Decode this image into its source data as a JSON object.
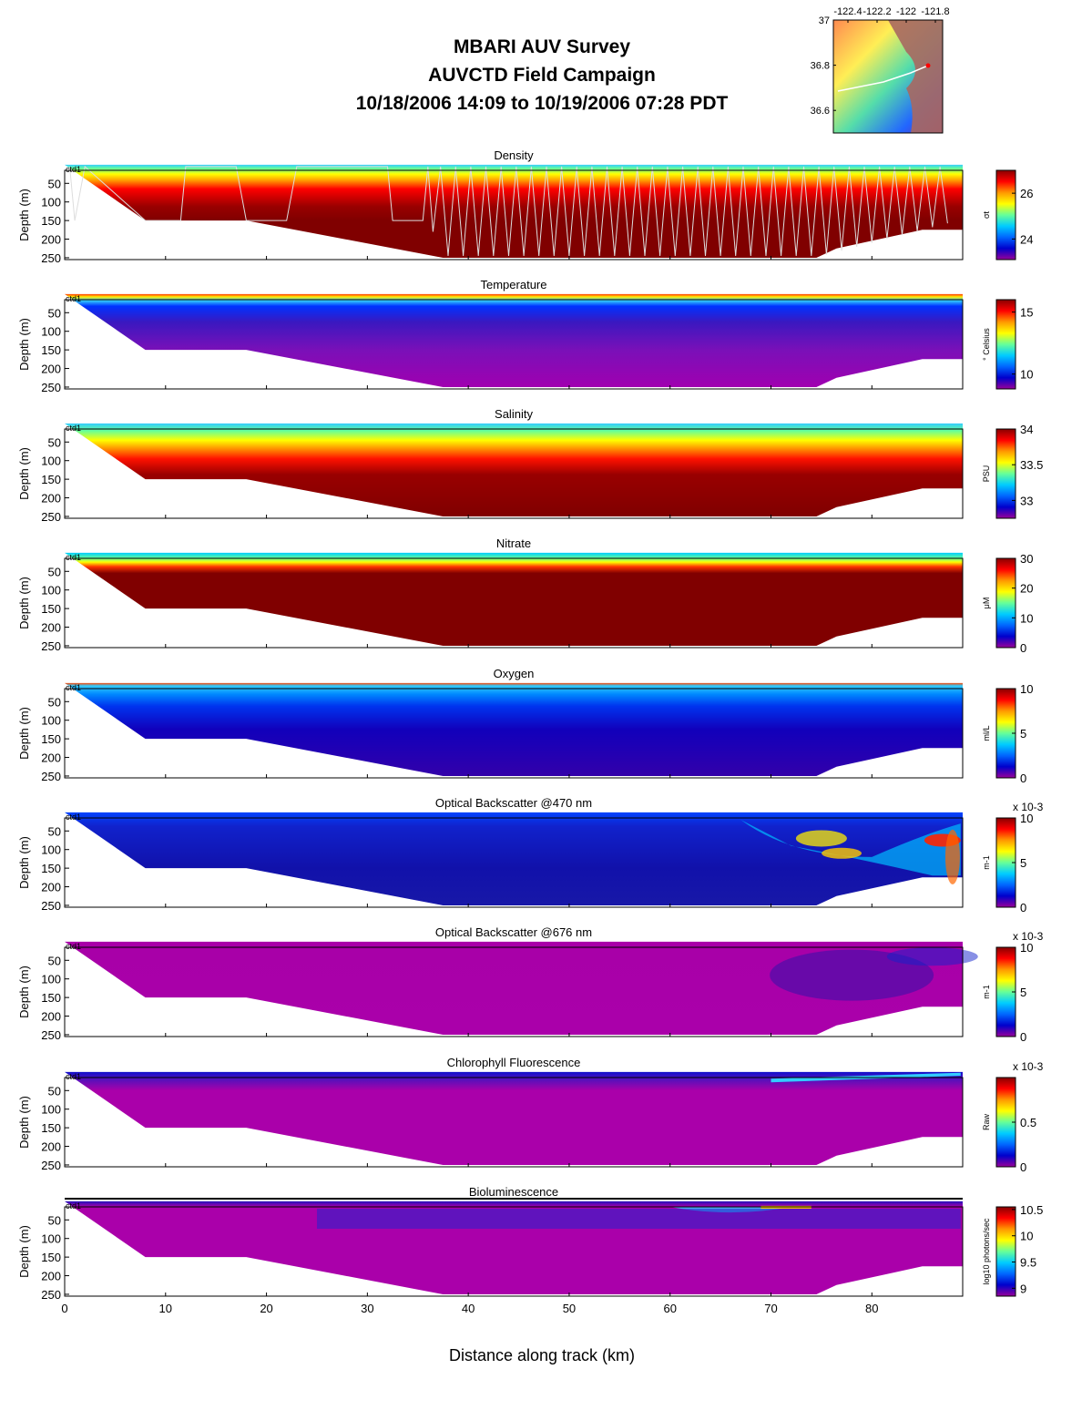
{
  "header": {
    "line1": "MBARI AUV Survey",
    "line2": "AUVCTD Field Campaign",
    "line3": "10/18/2006 14:09  to 10/19/2006 07:28 PDT"
  },
  "map_inset": {
    "lon_ticks": [
      "-122.4",
      "-122.2",
      "-122",
      "-121.8"
    ],
    "lat_ticks": [
      "37",
      "36.8",
      "36.6"
    ],
    "lon_range": [
      -122.5,
      -121.75
    ],
    "lat_range": [
      36.5,
      37.0
    ],
    "land_color": "#a86860",
    "track_color": "#ffffff",
    "end_marker_color": "#ff0000"
  },
  "chart_data": {
    "type": "heatmap",
    "xlabel": "Distance along track (km)",
    "ylabel": "Depth (m)",
    "xlim": [
      0,
      89
    ],
    "ylim": [
      0,
      255
    ],
    "x_ticks": [
      "0",
      "10",
      "20",
      "30",
      "40",
      "50",
      "60",
      "70",
      "80"
    ],
    "y_ticks": [
      "50",
      "100",
      "150",
      "200",
      "250"
    ],
    "station_label": "ctd1",
    "bottom_profile": {
      "x": [
        0,
        8,
        18,
        37.5,
        55,
        74.5,
        76.5,
        85,
        89
      ],
      "depth": [
        0,
        150,
        150,
        250,
        250,
        250,
        225,
        175,
        175
      ]
    },
    "colormap": [
      "#990099",
      "#0000cc",
      "#0066ff",
      "#00ccff",
      "#66ff99",
      "#ffff00",
      "#ff9900",
      "#ff0000",
      "#880000"
    ],
    "panels": [
      {
        "title": "Density",
        "unit": "σt",
        "ticks": [
          "26",
          "24"
        ],
        "ticks_values": [
          26,
          24
        ],
        "range": [
          23.1,
          27
        ]
      },
      {
        "title": "Temperature",
        "unit": "° Celsius",
        "ticks": [
          "15",
          "10"
        ],
        "ticks_values": [
          15,
          10
        ],
        "range": [
          8.8,
          16
        ]
      },
      {
        "title": "Salinity",
        "unit": "PSU",
        "ticks": [
          "34",
          "33.5",
          "33"
        ],
        "ticks_values": [
          34,
          33.5,
          33
        ],
        "range": [
          32.75,
          34
        ]
      },
      {
        "title": "Nitrate",
        "unit": "μM",
        "ticks": [
          "30",
          "20",
          "10",
          "0"
        ],
        "ticks_values": [
          30,
          20,
          10,
          0
        ],
        "range": [
          0,
          30
        ]
      },
      {
        "title": "Oxygen",
        "unit": "ml/L",
        "ticks": [
          "10",
          "5",
          "0"
        ],
        "ticks_values": [
          10,
          5,
          0
        ],
        "range": [
          0,
          10
        ]
      },
      {
        "title": "Optical Backscatter @470 nm",
        "unit": "m-1",
        "multiplier": "x 10-3",
        "ticks": [
          "10",
          "5",
          "0"
        ],
        "ticks_values": [
          10,
          5,
          0
        ],
        "range": [
          0,
          10
        ]
      },
      {
        "title": "Optical Backscatter @676 nm",
        "unit": "m-1",
        "multiplier": "x 10-3",
        "ticks": [
          "10",
          "5",
          "0"
        ],
        "ticks_values": [
          10,
          5,
          0
        ],
        "range": [
          0,
          10
        ]
      },
      {
        "title": "Chlorophyll Fluorescence",
        "unit": "Raw",
        "multiplier": "x 10-3",
        "ticks": [
          "0.5",
          "0"
        ],
        "ticks_values": [
          0.5,
          0
        ],
        "range": [
          0,
          1
        ]
      },
      {
        "title": "Bioluminescence",
        "unit": "log10 photons/sec",
        "ticks": [
          "10.5",
          "10",
          "9.5",
          "9"
        ],
        "ticks_values": [
          10.5,
          10,
          9.5,
          9
        ],
        "range": [
          8.85,
          10.55
        ]
      }
    ]
  }
}
